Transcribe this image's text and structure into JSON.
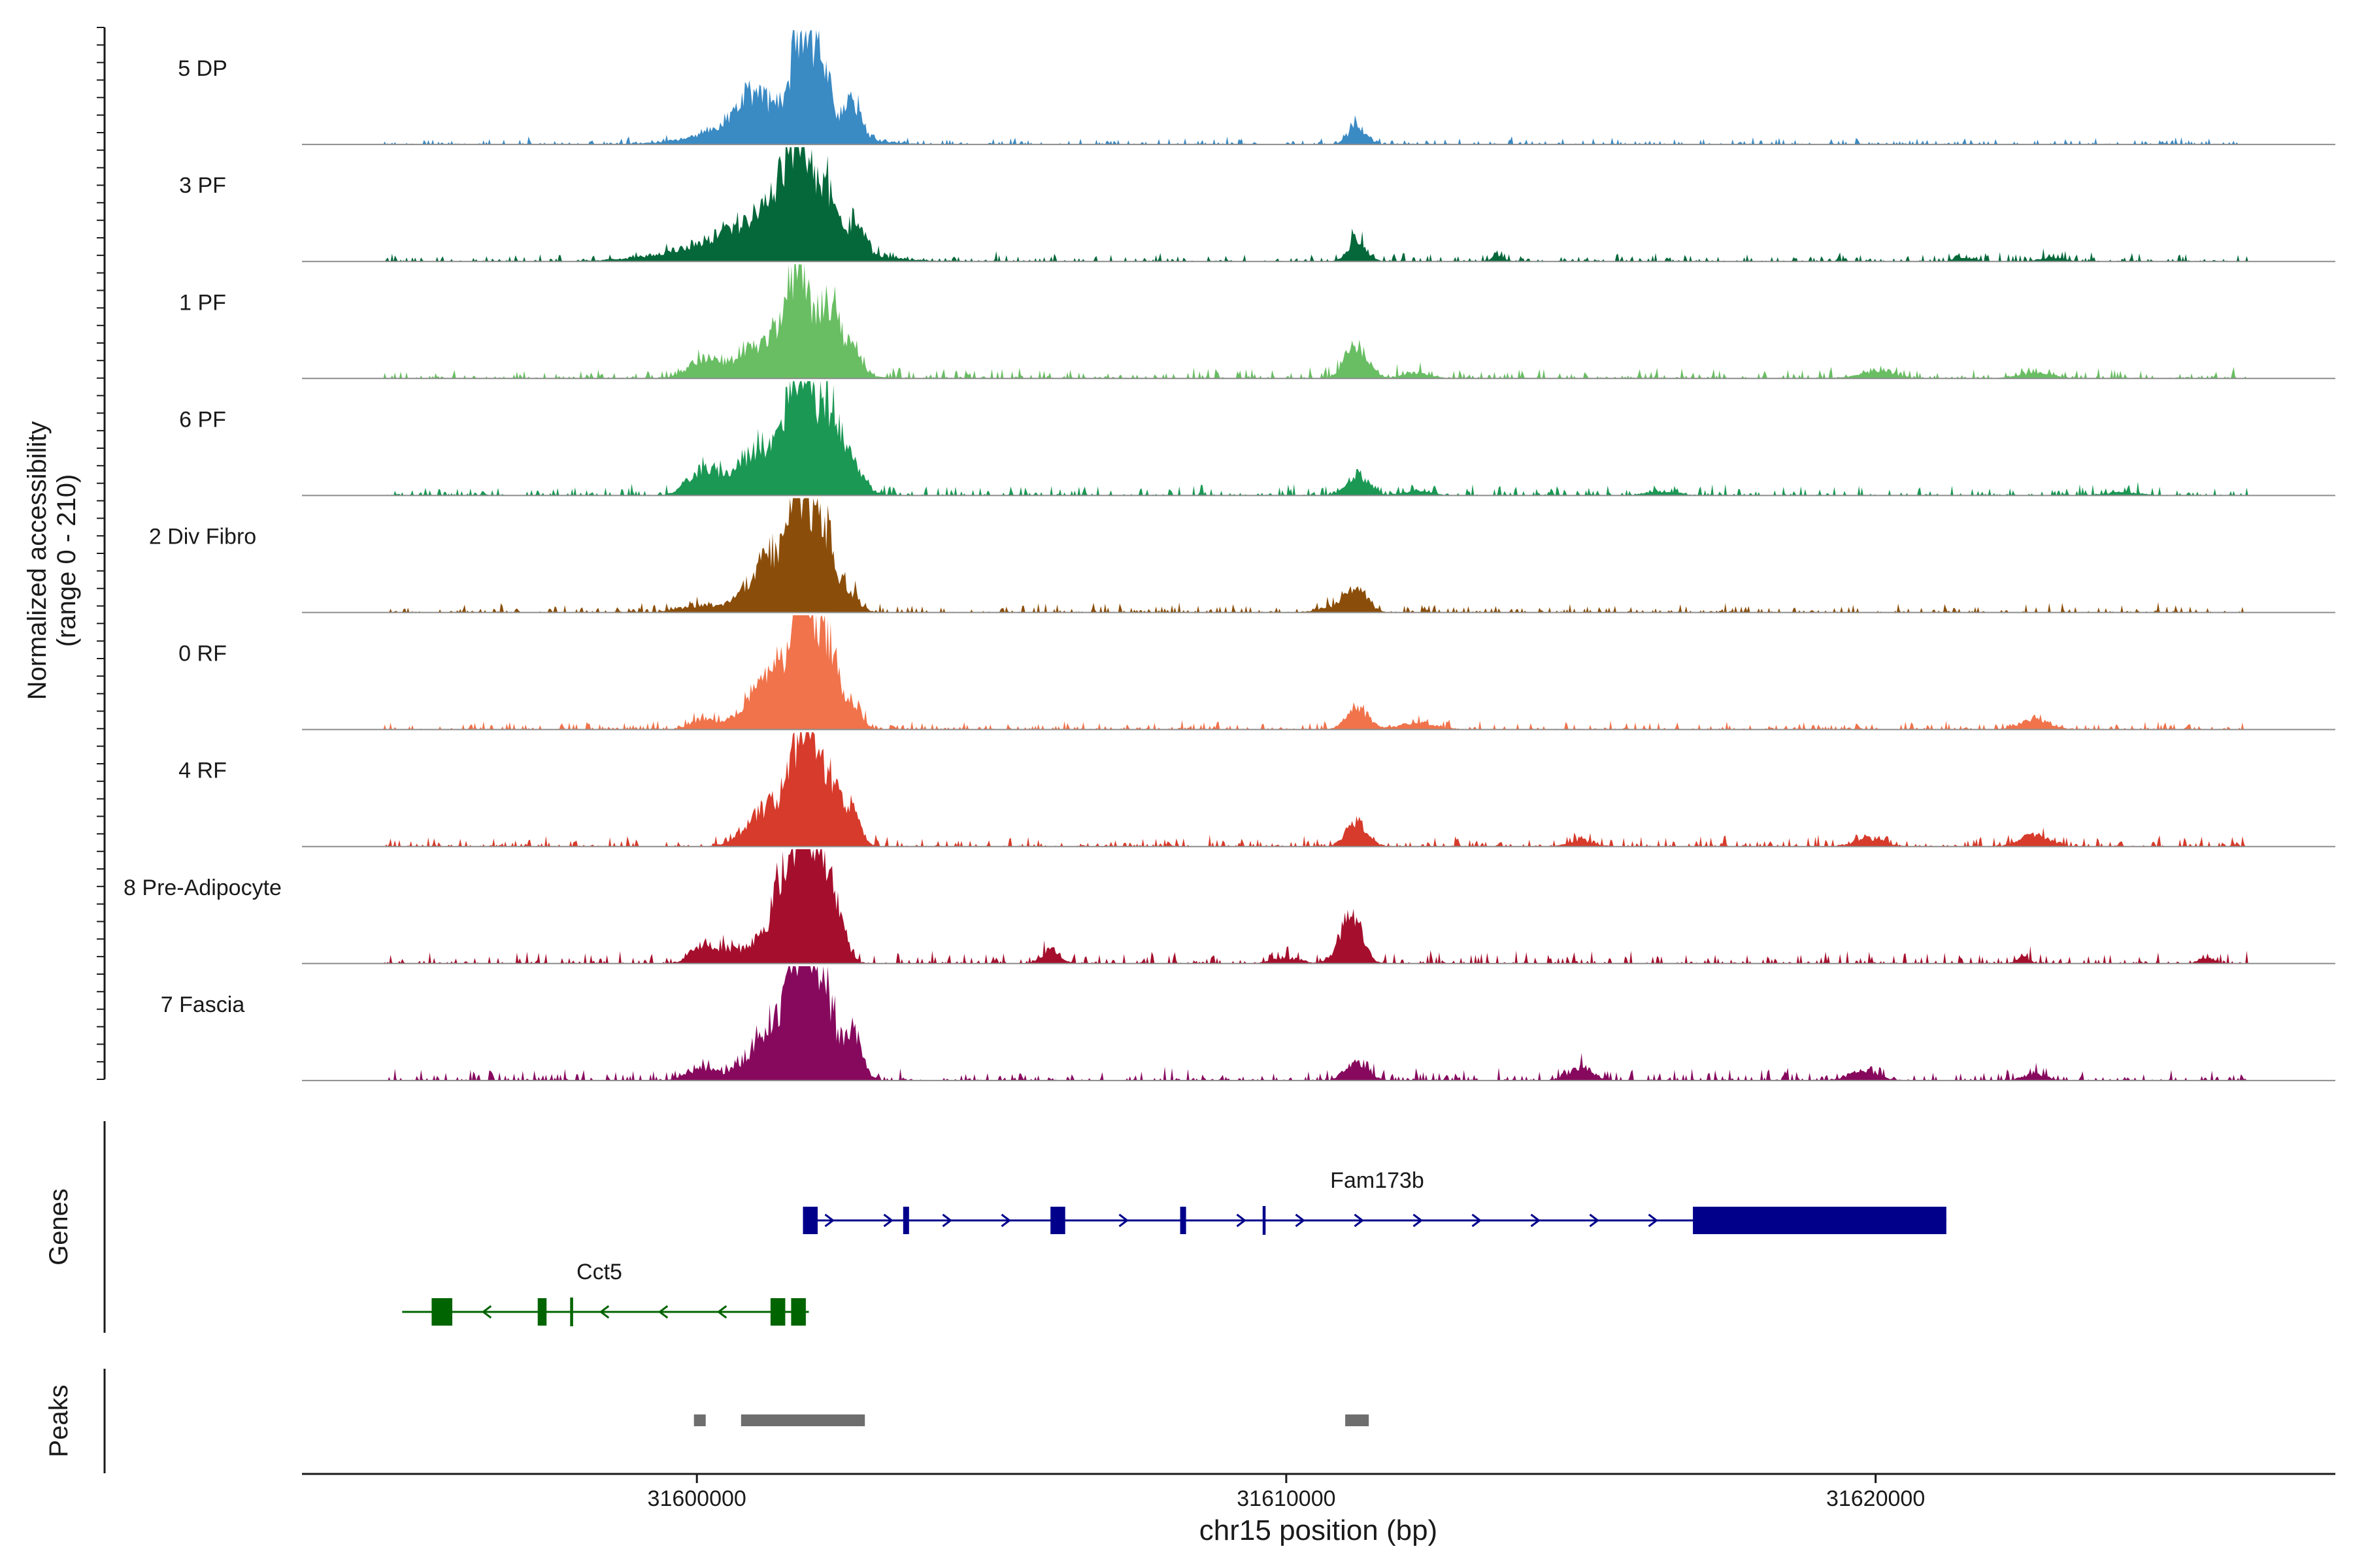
{
  "chart_data": {
    "type": "area",
    "title": "",
    "ylabel_line1": "Normalized accessibility",
    "ylabel_line2": "(range 0 - 210)",
    "xlabel": "chr15 position (bp)",
    "xlim": [
      31593300,
      31627800
    ],
    "ylim": [
      0,
      210
    ],
    "x_ticks": [
      31600000,
      31610000,
      31620000
    ],
    "x_tick_labels": [
      "31600000",
      "31610000",
      "31620000"
    ],
    "tracks": [
      {
        "name": "5 DP",
        "color": "#3a8ac4",
        "peaks": [
          [
            31601300,
            45,
            900
          ],
          [
            31601800,
            190,
            180
          ],
          [
            31602150,
            105,
            140
          ],
          [
            31602650,
            65,
            140
          ],
          [
            31601000,
            35,
            250
          ],
          [
            31600900,
            20,
            300
          ],
          [
            31611200,
            35,
            150
          ]
        ],
        "noise": 4,
        "noise_seed": 11
      },
      {
        "name": "3 PF",
        "color": "#04683a",
        "peaks": [
          [
            31601100,
            50,
            1100
          ],
          [
            31601400,
            80,
            220
          ],
          [
            31601750,
            170,
            180
          ],
          [
            31602200,
            105,
            150
          ],
          [
            31602700,
            60,
            140
          ],
          [
            31600800,
            25,
            350
          ],
          [
            31611200,
            40,
            150
          ],
          [
            31613600,
            8,
            120
          ],
          [
            31621500,
            6,
            150
          ],
          [
            31623000,
            8,
            200
          ]
        ],
        "noise": 5,
        "noise_seed": 23
      },
      {
        "name": "1 PF",
        "color": "#69be63",
        "peaks": [
          [
            31601400,
            45,
            700
          ],
          [
            31601700,
            170,
            200
          ],
          [
            31602250,
            120,
            160
          ],
          [
            31602650,
            45,
            150
          ],
          [
            31600100,
            28,
            250
          ],
          [
            31601000,
            20,
            300
          ],
          [
            31611200,
            60,
            180
          ],
          [
            31612200,
            10,
            250
          ],
          [
            31620000,
            12,
            300
          ],
          [
            31622700,
            10,
            300
          ]
        ],
        "noise": 6,
        "noise_seed": 37
      },
      {
        "name": "6 PF",
        "color": "#1b9854",
        "peaks": [
          [
            31601500,
            90,
            600
          ],
          [
            31601800,
            185,
            200
          ],
          [
            31602300,
            120,
            160
          ],
          [
            31602700,
            40,
            150
          ],
          [
            31600100,
            45,
            250
          ],
          [
            31600900,
            25,
            250
          ],
          [
            31611200,
            40,
            180
          ],
          [
            31612200,
            8,
            250
          ],
          [
            31616400,
            8,
            250
          ],
          [
            31624200,
            6,
            300
          ]
        ],
        "noise": 6,
        "noise_seed": 51
      },
      {
        "name": "2 Div Fibro",
        "color": "#8b4e0a",
        "peaks": [
          [
            31601300,
            105,
            400
          ],
          [
            31601800,
            185,
            200
          ],
          [
            31602200,
            125,
            160
          ],
          [
            31602600,
            35,
            150
          ],
          [
            31600000,
            12,
            300
          ],
          [
            31611200,
            42,
            180
          ],
          [
            31610800,
            10,
            250
          ]
        ],
        "noise": 5,
        "noise_seed": 67
      },
      {
        "name": "0 RF",
        "color": "#f0734b",
        "peaks": [
          [
            31601400,
            110,
            400
          ],
          [
            31601850,
            200,
            180
          ],
          [
            31602250,
            135,
            160
          ],
          [
            31602650,
            50,
            140
          ],
          [
            31600100,
            20,
            200
          ],
          [
            31601000,
            15,
            300
          ],
          [
            31611200,
            42,
            180
          ],
          [
            31612200,
            12,
            300
          ],
          [
            31622700,
            18,
            250
          ]
        ],
        "noise": 5,
        "noise_seed": 79
      },
      {
        "name": "4 RF",
        "color": "#d73b2b",
        "peaks": [
          [
            31601500,
            80,
            400
          ],
          [
            31601850,
            190,
            180
          ],
          [
            31602300,
            110,
            160
          ],
          [
            31602650,
            60,
            140
          ],
          [
            31601000,
            20,
            300
          ],
          [
            31611200,
            45,
            180
          ],
          [
            31615000,
            12,
            200
          ],
          [
            31619900,
            15,
            250
          ],
          [
            31622700,
            22,
            250
          ]
        ],
        "noise": 6,
        "noise_seed": 91
      },
      {
        "name": "8 Pre-Adipocyte",
        "color": "#a50f2d",
        "peaks": [
          [
            31601500,
            150,
            200
          ],
          [
            31601800,
            175,
            180
          ],
          [
            31602100,
            150,
            180
          ],
          [
            31602400,
            65,
            150
          ],
          [
            31600100,
            28,
            200
          ],
          [
            31600500,
            20,
            150
          ],
          [
            31601000,
            35,
            250
          ],
          [
            31606000,
            25,
            150
          ],
          [
            31611100,
            90,
            180
          ],
          [
            31610000,
            10,
            250
          ],
          [
            31622500,
            12,
            100
          ],
          [
            31625600,
            12,
            120
          ]
        ],
        "noise": 7,
        "noise_seed": 103
      },
      {
        "name": "7 Fascia",
        "color": "#87095e",
        "peaks": [
          [
            31601500,
            110,
            400
          ],
          [
            31601800,
            155,
            200
          ],
          [
            31602200,
            120,
            160
          ],
          [
            31602650,
            90,
            150
          ],
          [
            31600100,
            22,
            250
          ],
          [
            31601000,
            20,
            300
          ],
          [
            31611200,
            35,
            180
          ],
          [
            31615000,
            25,
            200
          ],
          [
            31619800,
            18,
            250
          ],
          [
            31622700,
            12,
            200
          ]
        ],
        "noise": 7,
        "noise_seed": 117
      }
    ],
    "genes": [
      {
        "name": "Fam173b",
        "strand": "+",
        "color": "#00008b",
        "start": 31601800,
        "end": 31621200,
        "exons": [
          [
            31601800,
            31602050
          ],
          [
            31603500,
            31603600
          ],
          [
            31606000,
            31606250
          ],
          [
            31608200,
            31608300
          ],
          [
            31609600,
            31609650
          ],
          [
            31616900,
            31621200
          ]
        ]
      },
      {
        "name": "Cct5",
        "strand": "-",
        "color": "#006400",
        "start": 31595000,
        "end": 31601900,
        "exons": [
          [
            31595500,
            31595850
          ],
          [
            31597300,
            31597450
          ],
          [
            31597850,
            31597900
          ],
          [
            31601250,
            31601500
          ],
          [
            31601600,
            31601850
          ]
        ]
      }
    ],
    "peaks": [
      [
        31599950,
        31600150
      ],
      [
        31600750,
        31602850
      ],
      [
        31611000,
        31611400
      ]
    ],
    "panel_labels": {
      "genes": "Genes",
      "peaks": "Peaks"
    }
  }
}
